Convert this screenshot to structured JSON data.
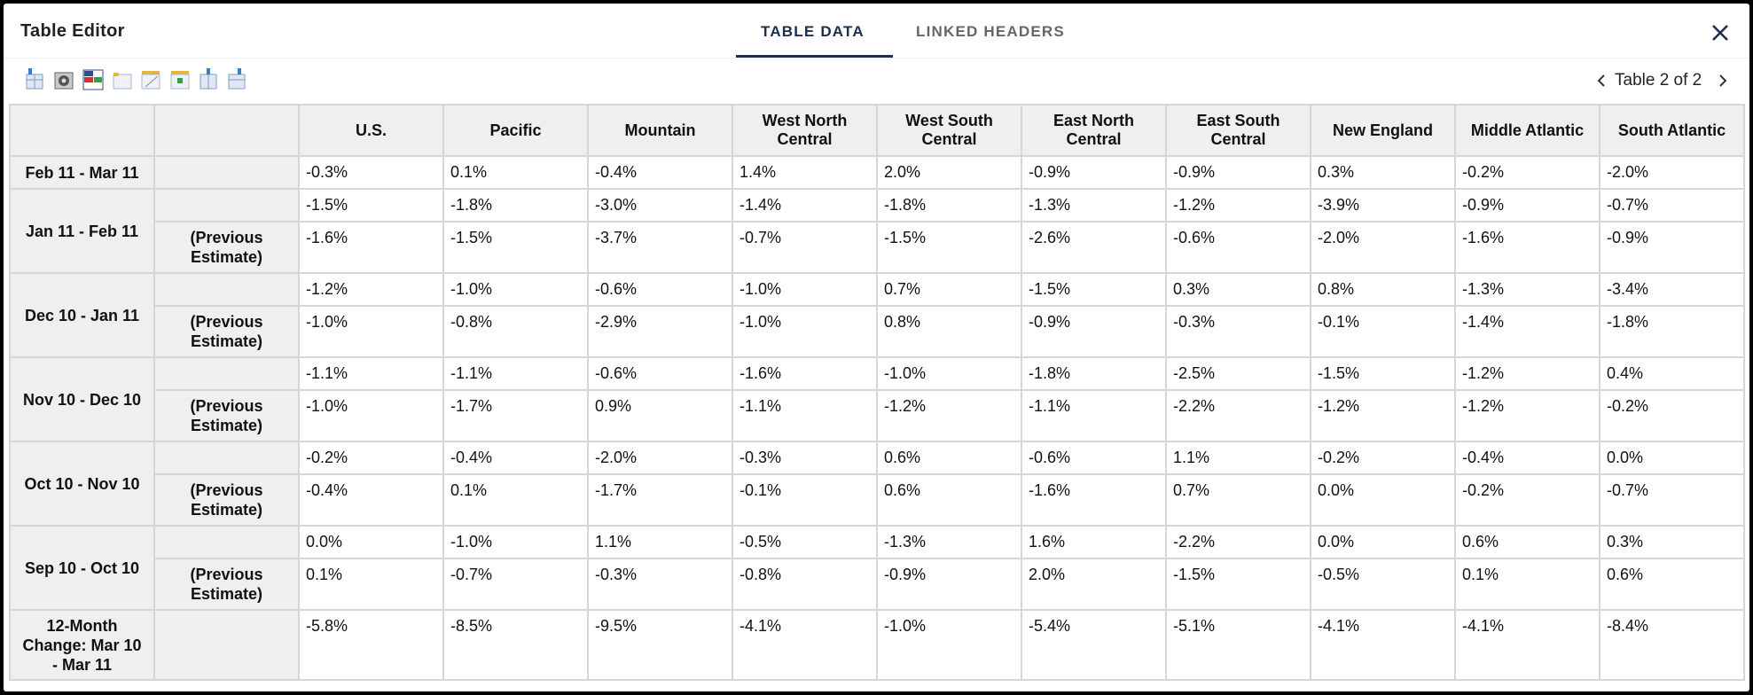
{
  "header": {
    "title": "Table Editor",
    "tabs": [
      "TABLE DATA",
      "LINKED HEADERS"
    ]
  },
  "pager": "Table 2 of 2",
  "table": {
    "columns": [
      "U.S.",
      "Pacific",
      "Mountain",
      "West North Central",
      "West South Central",
      "East North Central",
      "East South Central",
      "New England",
      "Middle Atlantic",
      "South Atlantic"
    ],
    "groups": [
      {
        "label": "Feb 11 - Mar 11",
        "rows": [
          {
            "values": [
              "-0.3%",
              "0.1%",
              "-0.4%",
              "1.4%",
              "2.0%",
              "-0.9%",
              "-0.9%",
              "0.3%",
              "-0.2%",
              "-2.0%"
            ]
          }
        ]
      },
      {
        "label": "Jan 11 - Feb 11",
        "rows": [
          {
            "values": [
              "-1.5%",
              "-1.8%",
              "-3.0%",
              "-1.4%",
              "-1.8%",
              "-1.3%",
              "-1.2%",
              "-3.9%",
              "-0.9%",
              "-0.7%"
            ]
          },
          {
            "label": "(Previous Estimate)",
            "values": [
              "-1.6%",
              "-1.5%",
              "-3.7%",
              "-0.7%",
              "-1.5%",
              "-2.6%",
              "-0.6%",
              "-2.0%",
              "-1.6%",
              "-0.9%"
            ]
          }
        ]
      },
      {
        "label": "Dec 10 - Jan 11",
        "rows": [
          {
            "values": [
              "-1.2%",
              "-1.0%",
              "-0.6%",
              "-1.0%",
              "0.7%",
              "-1.5%",
              "0.3%",
              "0.8%",
              "-1.3%",
              "-3.4%"
            ]
          },
          {
            "label": "(Previous Estimate)",
            "values": [
              "-1.0%",
              "-0.8%",
              "-2.9%",
              "-1.0%",
              "0.8%",
              "-0.9%",
              "-0.3%",
              "-0.1%",
              "-1.4%",
              "-1.8%"
            ]
          }
        ]
      },
      {
        "label": "Nov 10 - Dec 10",
        "rows": [
          {
            "values": [
              "-1.1%",
              "-1.1%",
              "-0.6%",
              "-1.6%",
              "-1.0%",
              "-1.8%",
              "-2.5%",
              "-1.5%",
              "-1.2%",
              "0.4%"
            ]
          },
          {
            "label": "(Previous Estimate)",
            "values": [
              "-1.0%",
              "-1.7%",
              "0.9%",
              "-1.1%",
              "-1.2%",
              "-1.1%",
              "-2.2%",
              "-1.2%",
              "-1.2%",
              "-0.2%"
            ]
          }
        ]
      },
      {
        "label": "Oct 10 - Nov 10",
        "rows": [
          {
            "values": [
              "-0.2%",
              "-0.4%",
              "-2.0%",
              "-0.3%",
              "0.6%",
              "-0.6%",
              "1.1%",
              "-0.2%",
              "-0.4%",
              "0.0%"
            ]
          },
          {
            "label": "(Previous Estimate)",
            "values": [
              "-0.4%",
              "0.1%",
              "-1.7%",
              "-0.1%",
              "0.6%",
              "-1.6%",
              "0.7%",
              "0.0%",
              "-0.2%",
              "-0.7%"
            ]
          }
        ]
      },
      {
        "label": "Sep 10 - Oct 10",
        "rows": [
          {
            "values": [
              "0.0%",
              "-1.0%",
              "1.1%",
              "-0.5%",
              "-1.3%",
              "1.6%",
              "-2.2%",
              "0.0%",
              "0.6%",
              "0.3%"
            ]
          },
          {
            "label": "(Previous Estimate)",
            "values": [
              "0.1%",
              "-0.7%",
              "-0.3%",
              "-0.8%",
              "-0.9%",
              "2.0%",
              "-1.5%",
              "-0.5%",
              "0.1%",
              "0.6%"
            ]
          }
        ]
      },
      {
        "label": "12-Month Change: Mar 10 - Mar 11",
        "rows": [
          {
            "values": [
              "-5.8%",
              "-8.5%",
              "-9.5%",
              "-4.1%",
              "-1.0%",
              "-5.4%",
              "-5.1%",
              "-4.1%",
              "-4.1%",
              "-8.4%"
            ]
          }
        ]
      }
    ]
  }
}
